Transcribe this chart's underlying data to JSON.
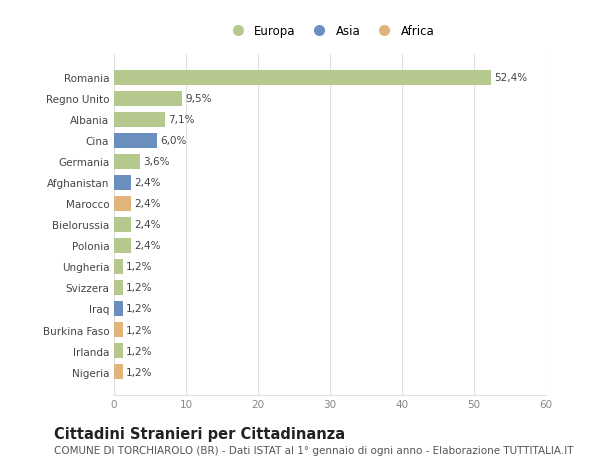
{
  "countries": [
    "Romania",
    "Regno Unito",
    "Albania",
    "Cina",
    "Germania",
    "Afghanistan",
    "Marocco",
    "Bielorussia",
    "Polonia",
    "Ungheria",
    "Svizzera",
    "Iraq",
    "Burkina Faso",
    "Irlanda",
    "Nigeria"
  ],
  "values": [
    52.4,
    9.5,
    7.1,
    6.0,
    3.6,
    2.4,
    2.4,
    2.4,
    2.4,
    1.2,
    1.2,
    1.2,
    1.2,
    1.2,
    1.2
  ],
  "labels": [
    "52,4%",
    "9,5%",
    "7,1%",
    "6,0%",
    "3,6%",
    "2,4%",
    "2,4%",
    "2,4%",
    "2,4%",
    "1,2%",
    "1,2%",
    "1,2%",
    "1,2%",
    "1,2%",
    "1,2%"
  ],
  "continents": [
    "Europa",
    "Europa",
    "Europa",
    "Asia",
    "Europa",
    "Asia",
    "Africa",
    "Europa",
    "Europa",
    "Europa",
    "Europa",
    "Asia",
    "Africa",
    "Europa",
    "Africa"
  ],
  "colors": {
    "Europa": "#b5c98e",
    "Asia": "#6a8fbf",
    "Africa": "#e0b47a"
  },
  "xlim": [
    0,
    60
  ],
  "xticks": [
    0,
    10,
    20,
    30,
    40,
    50,
    60
  ],
  "title": "Cittadini Stranieri per Cittadinanza",
  "subtitle": "COMUNE DI TORCHIAROLO (BR) - Dati ISTAT al 1° gennaio di ogni anno - Elaborazione TUTTITALIA.IT",
  "bg_color": "#ffffff",
  "grid_color": "#e0e0e0",
  "bar_height": 0.72,
  "title_fontsize": 10.5,
  "subtitle_fontsize": 7.5,
  "label_fontsize": 7.5,
  "tick_fontsize": 7.5,
  "legend_fontsize": 8.5,
  "ytick_fontsize": 7.5
}
